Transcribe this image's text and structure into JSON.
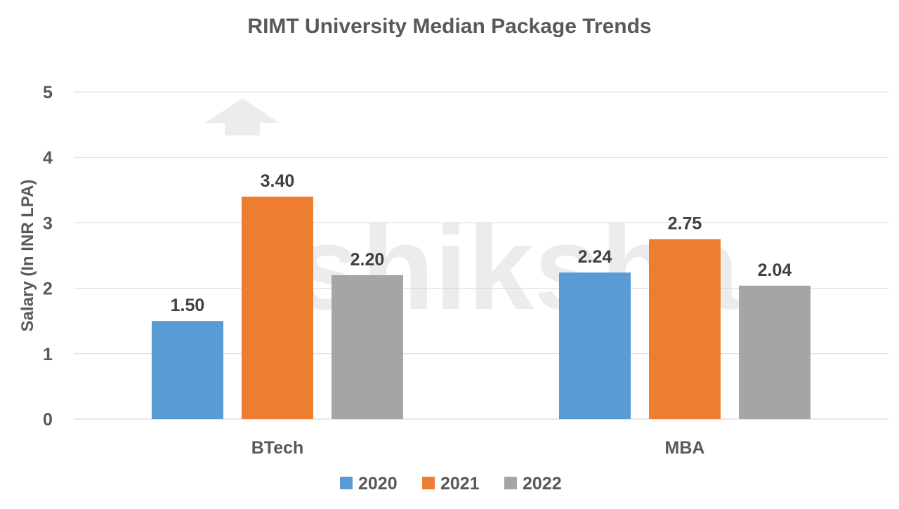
{
  "chart_data": {
    "type": "bar",
    "title": "RIMT University Median Package Trends",
    "xlabel": "",
    "ylabel": "Salary (In INR LPA)",
    "ylim": [
      0,
      5
    ],
    "yticks": [
      "0",
      "1",
      "2",
      "3",
      "4",
      "5"
    ],
    "grid": true,
    "legend_position": "bottom",
    "categories": [
      "BTech",
      "MBA"
    ],
    "series": [
      {
        "name": "2020",
        "color": "#5B9BD5",
        "values": [
          1.5,
          2.24
        ],
        "labels": [
          "1.50",
          "2.24"
        ]
      },
      {
        "name": "2021",
        "color": "#ED7D31",
        "values": [
          3.4,
          2.75
        ],
        "labels": [
          "3.40",
          "2.75"
        ]
      },
      {
        "name": "2022",
        "color": "#A5A5A5",
        "values": [
          2.2,
          2.04
        ],
        "labels": [
          "2.20",
          "2.04"
        ]
      }
    ],
    "watermark": "shiksha"
  }
}
